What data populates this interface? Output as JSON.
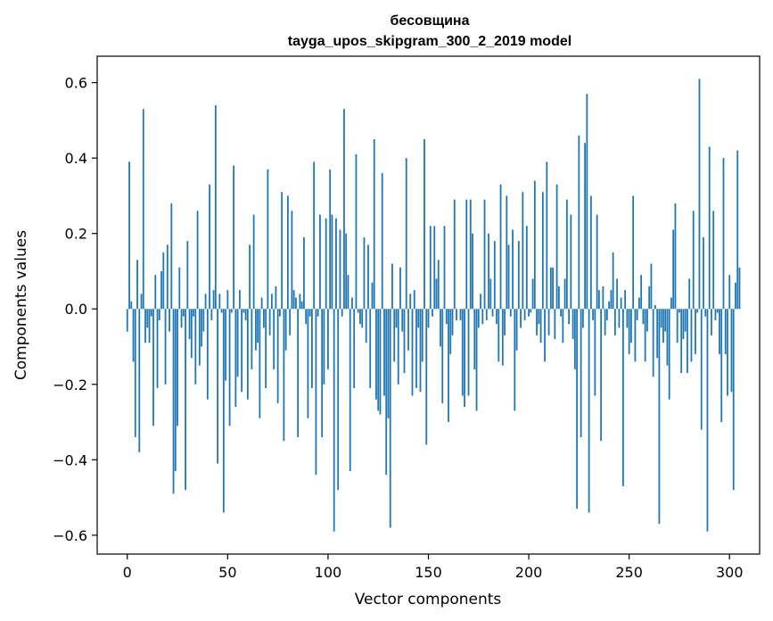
{
  "chart_data": {
    "type": "bar",
    "title": "бесовщина",
    "subtitle": "tayga_upos_skipgram_300_2_2019 model",
    "xlabel": "Vector components",
    "ylabel": "Components values",
    "xlim": [
      -15,
      315
    ],
    "ylim": [
      -0.65,
      0.67
    ],
    "xticks": [
      0,
      50,
      100,
      150,
      200,
      250,
      300
    ],
    "xtick_labels": [
      "0",
      "50",
      "100",
      "150",
      "200",
      "250",
      "300"
    ],
    "yticks": [
      -0.6,
      -0.4,
      -0.2,
      0.0,
      0.2,
      0.4,
      0.6
    ],
    "ytick_labels": [
      "−0.6",
      "−0.4",
      "−0.2",
      "0.0",
      "0.2",
      "0.4",
      "0.6"
    ],
    "grid": false,
    "color": "#1f77b4",
    "values": [
      -0.06,
      0.39,
      0.02,
      -0.14,
      -0.34,
      0.13,
      -0.38,
      0.04,
      0.53,
      -0.09,
      -0.05,
      -0.09,
      -0.02,
      -0.31,
      0.09,
      -0.21,
      -0.03,
      0.1,
      0.15,
      -0.2,
      0.17,
      -0.06,
      0.28,
      -0.49,
      -0.43,
      -0.31,
      0.11,
      -0.05,
      -0.02,
      -0.48,
      0.18,
      -0.08,
      -0.13,
      -0.02,
      -0.2,
      0.26,
      -0.15,
      -0.1,
      -0.06,
      0.04,
      -0.24,
      0.33,
      -0.03,
      0.05,
      0.54,
      -0.41,
      0.04,
      -0.01,
      -0.54,
      -0.19,
      0.05,
      -0.31,
      -0.01,
      0.38,
      -0.26,
      -0.18,
      0.05,
      -0.22,
      -0.01,
      -0.03,
      -0.24,
      0.17,
      -0.16,
      0.25,
      -0.11,
      -0.09,
      -0.29,
      0.03,
      -0.05,
      -0.21,
      0.37,
      -0.07,
      0.04,
      -0.16,
      0.06,
      -0.25,
      -0.02,
      0.31,
      -0.35,
      -0.11,
      0.3,
      -0.07,
      0.26,
      0.05,
      0.03,
      -0.34,
      0.04,
      0.02,
      0.19,
      -0.04,
      -0.29,
      -0.02,
      -0.21,
      0.39,
      -0.44,
      -0.02,
      0.25,
      -0.34,
      -0.2,
      0.24,
      -0.16,
      0.37,
      0.25,
      -0.59,
      0.24,
      -0.48,
      0.21,
      -0.02,
      0.53,
      0.2,
      0.09,
      -0.43,
      0.03,
      -0.21,
      0.41,
      -0.01,
      -0.04,
      -0.05,
      0.19,
      -0.09,
      0.17,
      -0.21,
      0.07,
      0.45,
      -0.24,
      -0.27,
      -0.28,
      0.36,
      -0.23,
      -0.44,
      -0.29,
      -0.58,
      0.12,
      -0.14,
      -0.05,
      -0.2,
      0.11,
      -0.06,
      -0.17,
      0.4,
      -0.11,
      0.04,
      -0.23,
      0.05,
      -0.21,
      -0.05,
      -0.22,
      -0.14,
      0.45,
      -0.36,
      -0.05,
      0.22,
      -0.02,
      0.22,
      0.08,
      0.13,
      -0.1,
      -0.25,
      0.22,
      -0.04,
      -0.3,
      -0.12,
      -0.07,
      0.29,
      -0.03,
      0.0,
      -0.03,
      -0.23,
      -0.26,
      0.29,
      -0.23,
      0.29,
      0.2,
      -0.16,
      -0.27,
      -0.05,
      0.04,
      -0.04,
      0.29,
      -0.03,
      0.2,
      0.08,
      -0.02,
      0.18,
      -0.04,
      -0.14,
      0.33,
      -0.15,
      -0.07,
      0.3,
      0.17,
      -0.02,
      0.21,
      -0.27,
      -0.11,
      0.18,
      -0.05,
      0.31,
      -0.03,
      0.22,
      -0.02,
      -0.01,
      0.08,
      0.34,
      -0.07,
      -0.04,
      -0.09,
      0.31,
      -0.14,
      0.39,
      -0.07,
      0.11,
      0.11,
      -0.08,
      0.33,
      0.06,
      -0.02,
      -0.09,
      0.08,
      0.29,
      -0.04,
      0.25,
      -0.08,
      -0.16,
      -0.53,
      0.46,
      -0.34,
      -0.05,
      0.44,
      0.57,
      -0.54,
      0.3,
      -0.03,
      -0.23,
      0.25,
      0.05,
      -0.35,
      0.06,
      -0.07,
      -0.03,
      0.02,
      0.05,
      0.15,
      -0.07,
      0.08,
      -0.05,
      0.03,
      -0.47,
      0.05,
      -0.05,
      -0.12,
      -0.09,
      0.3,
      -0.14,
      -0.03,
      0.03,
      0.09,
      -0.04,
      -0.14,
      -0.06,
      0.06,
      0.12,
      -0.18,
      0.01,
      -0.13,
      -0.57,
      -0.05,
      -0.09,
      -0.06,
      -0.15,
      -0.24,
      0.03,
      0.21,
      0.28,
      -0.09,
      -0.01,
      -0.17,
      -0.08,
      -0.06,
      -0.17,
      0.08,
      -0.14,
      0.26,
      -0.12,
      -0.01,
      0.61,
      -0.32,
      0.19,
      -0.02,
      -0.59,
      0.43,
      -0.07,
      0.26,
      -0.03,
      -0.01,
      -0.12,
      -0.3,
      0.4,
      -0.12,
      -0.23,
      0.09,
      -0.22,
      -0.48,
      0.07,
      0.42,
      0.11
    ]
  }
}
